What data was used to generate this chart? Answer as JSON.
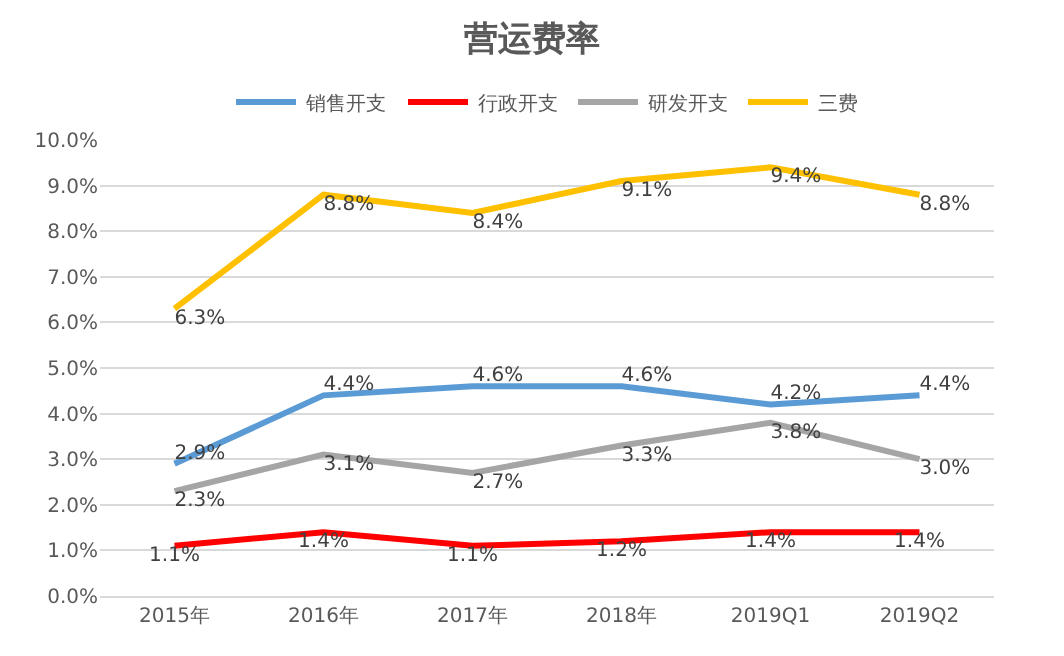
{
  "chart_data": {
    "type": "line",
    "title": "营运费率",
    "categories": [
      "2015年",
      "2016年",
      "2017年",
      "2018年",
      "2019Q1",
      "2019Q2"
    ],
    "series": [
      {
        "name": "销售开支",
        "color": "#5b9bd5",
        "values": [
          2.9,
          4.4,
          4.6,
          4.6,
          4.2,
          4.4
        ],
        "value_labels": [
          "2.9%",
          "4.4%",
          "4.6%",
          "4.6%",
          "4.2%",
          "4.4%"
        ]
      },
      {
        "name": "行政开支",
        "color": "#ff0000",
        "values": [
          1.1,
          1.4,
          1.1,
          1.2,
          1.4,
          1.4
        ],
        "value_labels": [
          "1.1%",
          "1.4%",
          "1.1%",
          "1.2%",
          "1.4%",
          "1.4%"
        ]
      },
      {
        "name": "研发开支",
        "color": "#a5a5a5",
        "values": [
          2.3,
          3.1,
          2.7,
          3.3,
          3.8,
          3.0
        ],
        "value_labels": [
          "2.3%",
          "3.1%",
          "2.7%",
          "3.3%",
          "3.8%",
          "3.0%"
        ]
      },
      {
        "name": "三费",
        "color": "#ffc000",
        "values": [
          6.3,
          8.8,
          8.4,
          9.1,
          9.4,
          8.8
        ],
        "value_labels": [
          "6.3%",
          "8.8%",
          "8.4%",
          "9.1%",
          "9.4%",
          "8.8%"
        ]
      }
    ],
    "ylim": [
      0,
      10
    ],
    "yticks": [
      {
        "value": 0,
        "label": "0.0%"
      },
      {
        "value": 1,
        "label": "1.0%"
      },
      {
        "value": 2,
        "label": "2.0%"
      },
      {
        "value": 3,
        "label": "3.0%"
      },
      {
        "value": 4,
        "label": "4.0%"
      },
      {
        "value": 5,
        "label": "5.0%"
      },
      {
        "value": 6,
        "label": "6.0%"
      },
      {
        "value": 7,
        "label": "7.0%"
      },
      {
        "value": 8,
        "label": "8.0%"
      },
      {
        "value": 9,
        "label": "9.0%"
      },
      {
        "value": 10,
        "label": "10.0%"
      }
    ],
    "grid": "y",
    "legend": "top",
    "marker": "none",
    "line_style": "solid"
  }
}
